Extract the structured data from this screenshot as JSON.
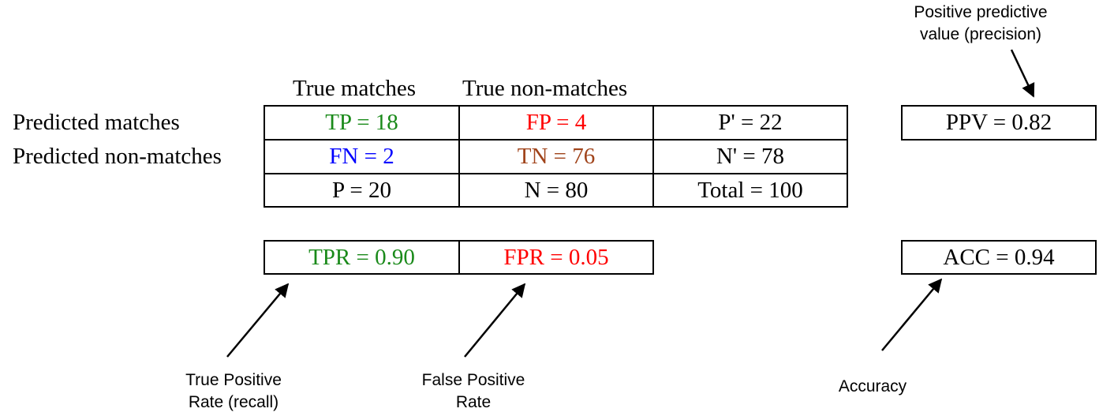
{
  "headers": {
    "col1": "True matches",
    "col2": "True non-matches",
    "row1": "Predicted matches",
    "row2": "Predicted non-matches"
  },
  "matrix": {
    "tp": "TP = 18",
    "fp": "FP = 4",
    "p_prime": "P' = 22",
    "fn": "FN = 2",
    "tn": "TN = 76",
    "n_prime": "N' = 78",
    "p": "P = 20",
    "n": "N = 80",
    "total": "Total = 100"
  },
  "rates": {
    "tpr": "TPR = 0.90",
    "fpr": "FPR = 0.05",
    "ppv": "PPV = 0.82",
    "acc": "ACC = 0.94"
  },
  "annotations": {
    "ppv_line1": "Positive predictive",
    "ppv_line2": "value (precision)",
    "tpr_line1": "True Positive",
    "tpr_line2": "Rate (recall)",
    "fpr_line1": "False Positive",
    "fpr_line2": "Rate",
    "acc": "Accuracy"
  },
  "colors": {
    "green": "#1a8a1a",
    "red": "#ff0000",
    "blue": "#0000ff",
    "brown": "#a0431a",
    "black": "#000000"
  }
}
